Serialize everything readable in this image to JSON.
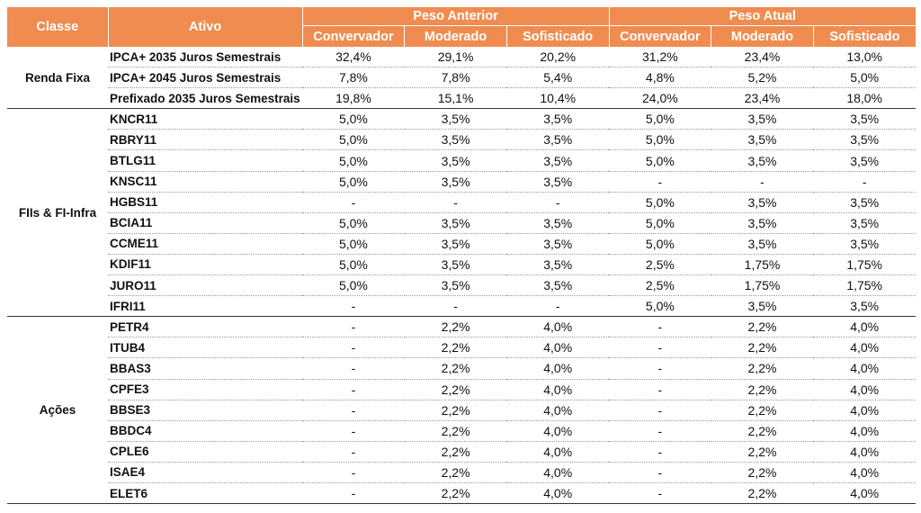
{
  "header": {
    "classe": "Classe",
    "ativo": "Ativo",
    "group_anterior": "Peso Anterior",
    "group_atual": "Peso Atual",
    "profiles": [
      "Convervador",
      "Moderado",
      "Sofisticado",
      "Convervador",
      "Moderado",
      "Sofisticado"
    ]
  },
  "groups": [
    {
      "classe": "Renda Fixa",
      "rows": [
        {
          "ativo": "IPCA+ 2035 Juros Semestrais",
          "vals": [
            "32,4%",
            "29,1%",
            "20,2%",
            "31,2%",
            "23,4%",
            "13,0%"
          ]
        },
        {
          "ativo": "IPCA+ 2045 Juros Semestrais",
          "vals": [
            "7,8%",
            "7,8%",
            "5,4%",
            "4,8%",
            "5,2%",
            "5,0%"
          ]
        },
        {
          "ativo": "Prefixado 2035 Juros Semestrais",
          "vals": [
            "19,8%",
            "15,1%",
            "10,4%",
            "24,0%",
            "23,4%",
            "18,0%"
          ]
        }
      ]
    },
    {
      "classe": "FIIs & FI-Infra",
      "rows": [
        {
          "ativo": "KNCR11",
          "vals": [
            "5,0%",
            "3,5%",
            "3,5%",
            "5,0%",
            "3,5%",
            "3,5%"
          ]
        },
        {
          "ativo": "RBRY11",
          "vals": [
            "5,0%",
            "3,5%",
            "3,5%",
            "5,0%",
            "3,5%",
            "3,5%"
          ]
        },
        {
          "ativo": "BTLG11",
          "vals": [
            "5,0%",
            "3,5%",
            "3,5%",
            "5,0%",
            "3,5%",
            "3,5%"
          ]
        },
        {
          "ativo": "KNSC11",
          "vals": [
            "5,0%",
            "3,5%",
            "3,5%",
            "-",
            "-",
            "-"
          ]
        },
        {
          "ativo": "HGBS11",
          "vals": [
            "-",
            "-",
            "-",
            "5,0%",
            "3,5%",
            "3,5%"
          ]
        },
        {
          "ativo": "BCIA11",
          "vals": [
            "5,0%",
            "3,5%",
            "3,5%",
            "5,0%",
            "3,5%",
            "3,5%"
          ]
        },
        {
          "ativo": "CCME11",
          "vals": [
            "5,0%",
            "3,5%",
            "3,5%",
            "5,0%",
            "3,5%",
            "3,5%"
          ]
        },
        {
          "ativo": "KDIF11",
          "vals": [
            "5,0%",
            "3,5%",
            "3,5%",
            "2,5%",
            "1,75%",
            "1,75%"
          ]
        },
        {
          "ativo": "JURO11",
          "vals": [
            "5,0%",
            "3,5%",
            "3,5%",
            "2,5%",
            "1,75%",
            "1,75%"
          ]
        },
        {
          "ativo": "IFRI11",
          "vals": [
            "-",
            "-",
            "-",
            "5,0%",
            "3,5%",
            "3,5%"
          ]
        }
      ]
    },
    {
      "classe": "Ações",
      "rows": [
        {
          "ativo": "PETR4",
          "vals": [
            "-",
            "2,2%",
            "4,0%",
            "-",
            "2,2%",
            "4,0%"
          ]
        },
        {
          "ativo": "ITUB4",
          "vals": [
            "-",
            "2,2%",
            "4,0%",
            "-",
            "2,2%",
            "4,0%"
          ]
        },
        {
          "ativo": "BBAS3",
          "vals": [
            "-",
            "2,2%",
            "4,0%",
            "-",
            "2,2%",
            "4,0%"
          ]
        },
        {
          "ativo": "CPFE3",
          "vals": [
            "-",
            "2,2%",
            "4,0%",
            "-",
            "2,2%",
            "4,0%"
          ]
        },
        {
          "ativo": "BBSE3",
          "vals": [
            "-",
            "2,2%",
            "4,0%",
            "-",
            "2,2%",
            "4,0%"
          ]
        },
        {
          "ativo": "BBDC4",
          "vals": [
            "-",
            "2,2%",
            "4,0%",
            "-",
            "2,2%",
            "4,0%"
          ]
        },
        {
          "ativo": "CPLE6",
          "vals": [
            "-",
            "2,2%",
            "4,0%",
            "-",
            "2,2%",
            "4,0%"
          ]
        },
        {
          "ativo": "ISAE4",
          "vals": [
            "-",
            "2,2%",
            "4,0%",
            "-",
            "2,2%",
            "4,0%"
          ]
        },
        {
          "ativo": "ELET6",
          "vals": [
            "-",
            "2,2%",
            "4,0%",
            "-",
            "2,2%",
            "4,0%"
          ]
        }
      ]
    }
  ]
}
